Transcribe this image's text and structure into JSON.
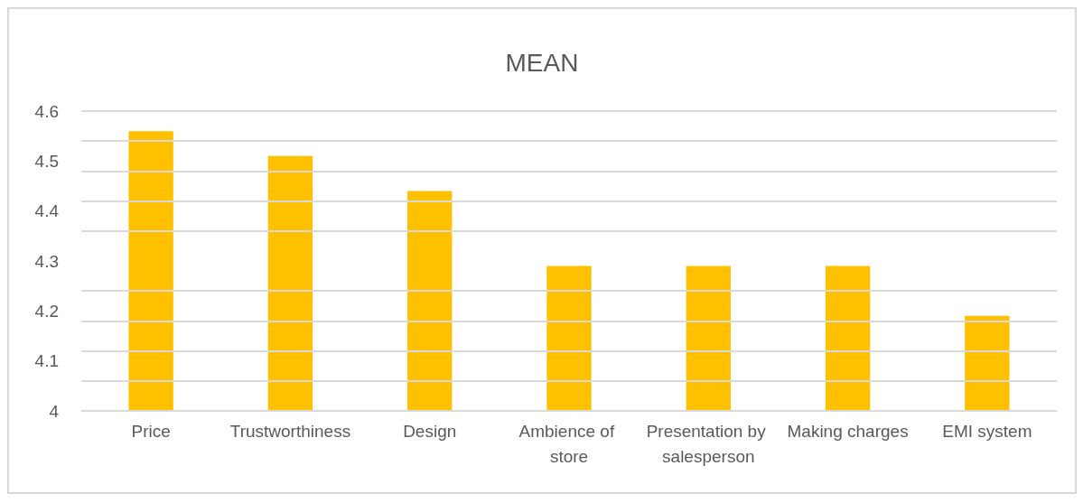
{
  "chart_data": {
    "type": "bar",
    "title": "MEAN",
    "categories": [
      "Price",
      "Trustworthiness",
      "Design",
      "Ambience of store",
      "Presentation by salesperson",
      "Making charges",
      "EMI system"
    ],
    "values": [
      4.56,
      4.51,
      4.44,
      4.29,
      4.29,
      4.29,
      4.19
    ],
    "color": "#ffc000",
    "ylim": [
      4,
      4.6
    ],
    "yticks": [
      4,
      {
        "value": 4.06,
        "label": null
      },
      4.1,
      {
        "value": 4.12,
        "label": null
      },
      {
        "value": 4.18,
        "label": null
      },
      4.2,
      {
        "value": 4.24,
        "label": null
      },
      4.3,
      {
        "value": 4.36,
        "label": null
      },
      4.4,
      {
        "value": 4.42,
        "label": null
      },
      {
        "value": 4.48,
        "label": null
      },
      4.5,
      {
        "value": 4.54,
        "label": null
      },
      4.6
    ],
    "grid": true
  }
}
